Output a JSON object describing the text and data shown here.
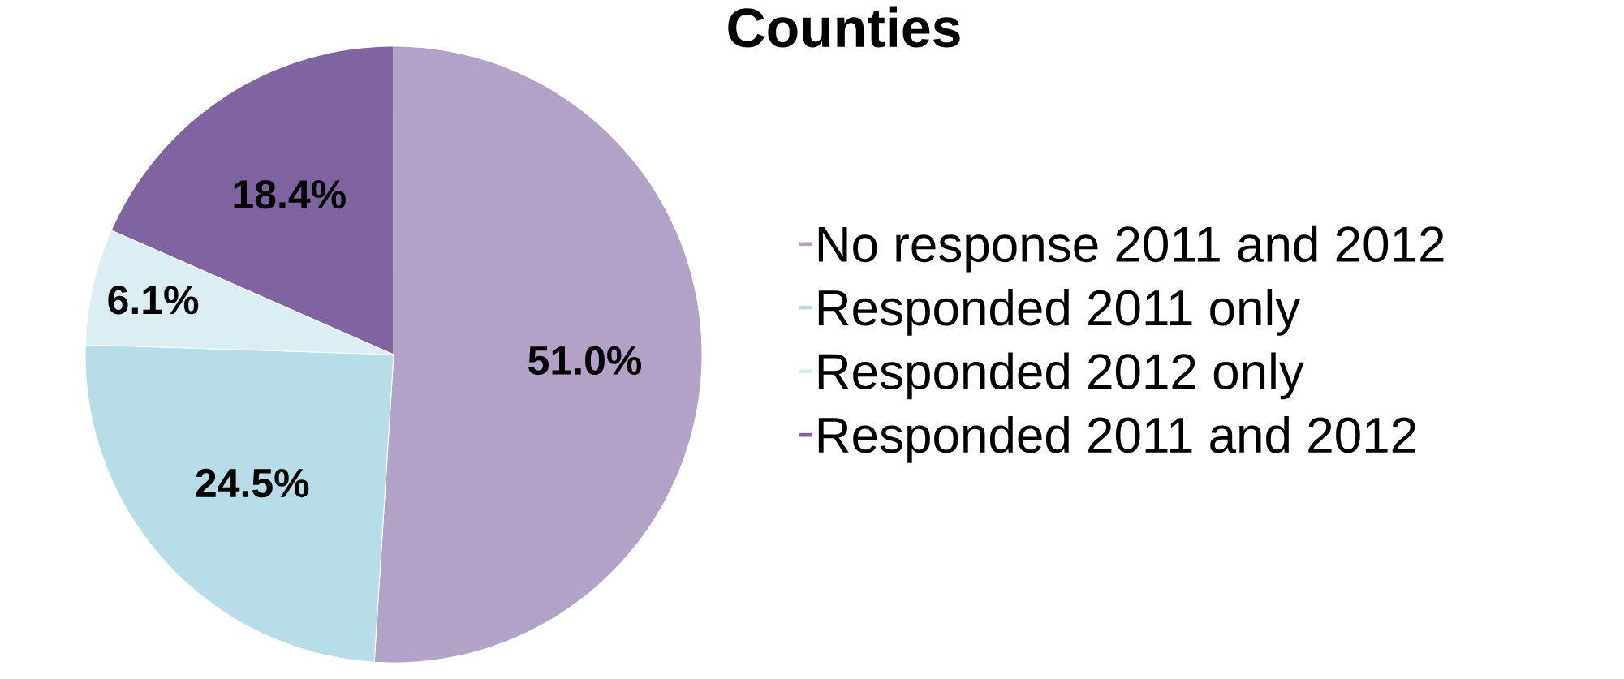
{
  "chart_data": {
    "type": "pie",
    "title": "Counties",
    "categories": [
      "No response 2011 and 2012",
      "Responded 2011 only",
      "Responded 2012 only",
      "Responded 2011 and 2012"
    ],
    "values": [
      51.0,
      24.5,
      6.1,
      18.4
    ],
    "value_labels": [
      "51.0%",
      "24.5%",
      "6.1%",
      "18.4%"
    ],
    "colors": [
      "#b2a2c7",
      "#b7dde8",
      "#dbeef4",
      "#8064a2"
    ],
    "legend": "right"
  }
}
